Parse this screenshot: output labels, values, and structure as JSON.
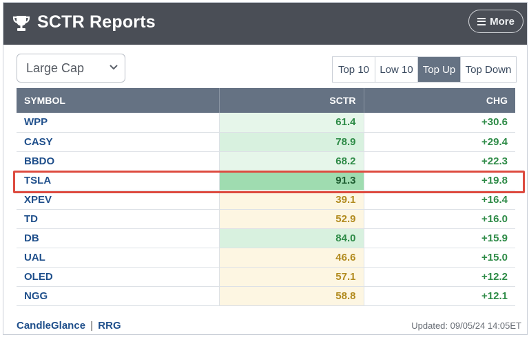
{
  "header": {
    "title": "SCTR Reports",
    "more_label": "More",
    "icons": {
      "trophy": "trophy-icon",
      "menu": "hamburger-menu-icon"
    }
  },
  "filters": {
    "cap_select": {
      "value": "Large Cap",
      "icon": "chevron-down-icon"
    },
    "tabs": [
      {
        "label": "Top 10",
        "active": false
      },
      {
        "label": "Low 10",
        "active": false
      },
      {
        "label": "Top Up",
        "active": true
      },
      {
        "label": "Top Down",
        "active": false
      }
    ]
  },
  "table": {
    "columns": [
      "SYMBOL",
      "SCTR",
      "CHG"
    ],
    "rows": [
      {
        "symbol": "WPP",
        "sctr": "61.4",
        "chg": "+30.6"
      },
      {
        "symbol": "CASY",
        "sctr": "78.9",
        "chg": "+29.4"
      },
      {
        "symbol": "BBDO",
        "sctr": "68.2",
        "chg": "+22.3"
      },
      {
        "symbol": "TSLA",
        "sctr": "91.3",
        "chg": "+19.8",
        "highlighted": true
      },
      {
        "symbol": "XPEV",
        "sctr": "39.1",
        "chg": "+16.4"
      },
      {
        "symbol": "TD",
        "sctr": "52.9",
        "chg": "+16.0"
      },
      {
        "symbol": "DB",
        "sctr": "84.0",
        "chg": "+15.9"
      },
      {
        "symbol": "UAL",
        "sctr": "46.6",
        "chg": "+15.0"
      },
      {
        "symbol": "OLED",
        "sctr": "57.1",
        "chg": "+12.2"
      },
      {
        "symbol": "NGG",
        "sctr": "58.8",
        "chg": "+12.1"
      }
    ]
  },
  "footer": {
    "links": [
      "CandleGlance",
      "RRG"
    ],
    "separator": "|",
    "updated": "Updated: 09/05/24 14:05ET"
  },
  "colors": {
    "header_bg": "#4a4e56",
    "table_header_bg": "#657283",
    "symbol_link": "#1f4f8b",
    "chg_positive": "#2e8b47",
    "highlight_border": "#dd4a3f"
  }
}
